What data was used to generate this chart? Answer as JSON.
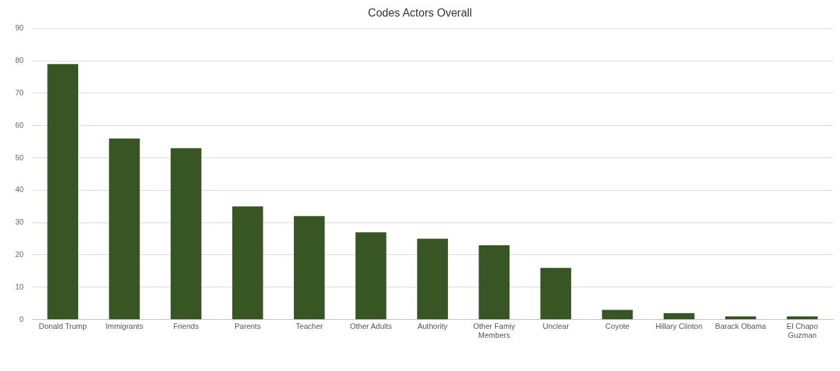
{
  "chart_data": {
    "type": "bar",
    "title": "Codes Actors Overall",
    "categories": [
      "Donald Trump",
      "Immigrants",
      "Friends",
      "Parents",
      "Teacher",
      "Other Adults",
      "Authority",
      "Other Famiy Members",
      "Unclear",
      "Coyote",
      "Hillary Clinton",
      "Barack Obama",
      "El Chapo Guzman"
    ],
    "values": [
      79,
      56,
      53,
      35,
      32,
      27,
      25,
      23,
      16,
      3,
      2,
      1,
      1
    ],
    "color": "#375623",
    "ylim": [
      0,
      90
    ],
    "yticks": [
      0,
      10,
      20,
      30,
      40,
      50,
      60,
      70,
      80,
      90
    ],
    "grid": "y",
    "legend": false
  }
}
